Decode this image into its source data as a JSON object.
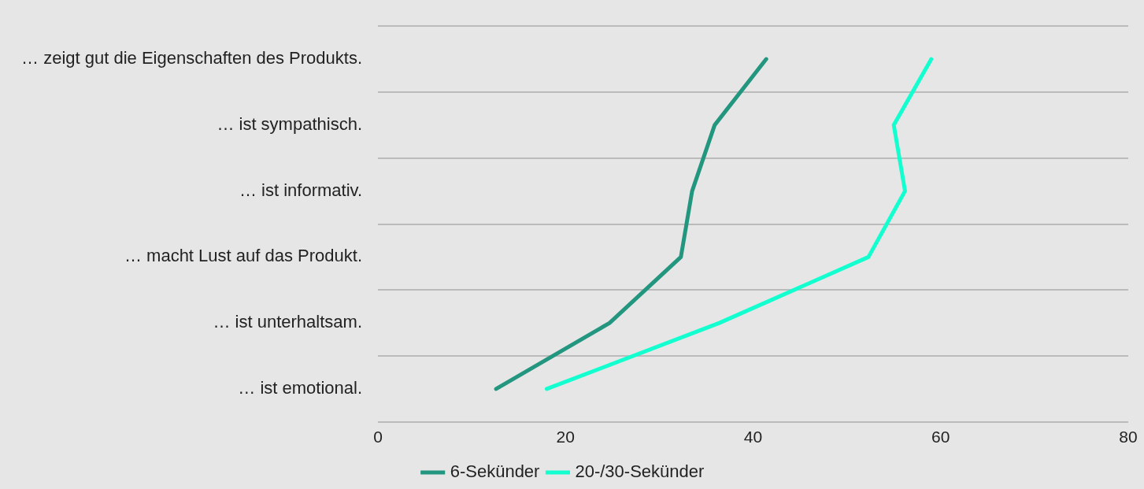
{
  "chart_data": {
    "type": "line",
    "orientation": "horizontal",
    "categories": [
      "… zeigt gut die Eigenschaften des Produkts.",
      "… ist sympathisch.",
      "… ist informativ.",
      "… macht Lust auf das Produkt.",
      "… ist unterhaltsam.",
      "… ist emotional."
    ],
    "series": [
      {
        "name": "6-Sekünder",
        "color": "#23967f",
        "values": [
          41.4,
          35.9,
          33.5,
          32.3,
          24.7,
          12.6
        ]
      },
      {
        "name": "20-/30-Sekünder",
        "color": "#14ffd0",
        "values": [
          59.0,
          55.0,
          56.2,
          52.3,
          36.4,
          18.0
        ]
      }
    ],
    "xlim": [
      0,
      80
    ],
    "xticks": [
      0,
      20,
      40,
      60,
      80
    ],
    "grid": "y",
    "legend": "bottom",
    "marker": "none",
    "line_style": "solid"
  }
}
